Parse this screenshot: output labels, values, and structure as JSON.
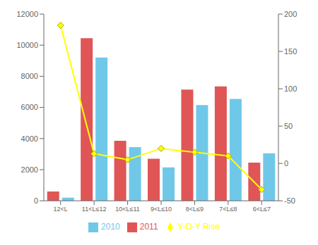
{
  "chart_data": {
    "type": "bar",
    "categories": [
      "12<L",
      "11<L≤12",
      "10<L≤11",
      "9<L≤10",
      "8<L≤9",
      "7<L≤8",
      "6<L≤7"
    ],
    "series": [
      {
        "name": "2011",
        "type": "bar",
        "color": "#E05555",
        "values": [
          600,
          10450,
          3850,
          2700,
          7150,
          7350,
          2450
        ]
      },
      {
        "name": "2010",
        "type": "bar",
        "color": "#70C8E8",
        "values": [
          200,
          9200,
          3450,
          2150,
          6150,
          6550,
          3050
        ]
      },
      {
        "name": "Y-O-Y Rise",
        "type": "line",
        "color": "#FFFF00",
        "marker": "diamond",
        "axis": "y2",
        "values": [
          185,
          13,
          5,
          20,
          15,
          10,
          -35
        ]
      }
    ],
    "ylim": [
      0,
      12000
    ],
    "yticks": [
      0,
      2000,
      4000,
      6000,
      8000,
      10000,
      12000
    ],
    "y2lim": [
      -50,
      200
    ],
    "y2ticks": [
      -50,
      0,
      50,
      100,
      150,
      200
    ],
    "grid": false,
    "legend": "bottom"
  }
}
